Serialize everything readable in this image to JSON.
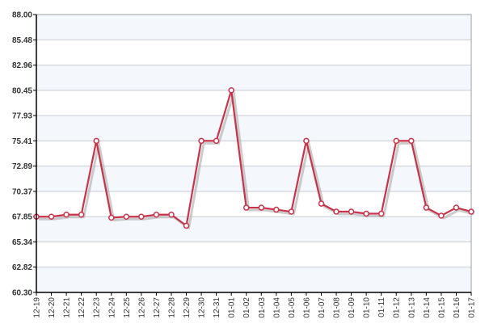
{
  "chart_data": {
    "type": "line",
    "title": "",
    "xlabel": "",
    "ylabel": "",
    "categories": [
      "12-19",
      "12-20",
      "12-21",
      "12-22",
      "12-23",
      "12-24",
      "12-25",
      "12-26",
      "12-27",
      "12-28",
      "12-29",
      "12-30",
      "12-31",
      "01-01",
      "01-02",
      "01-03",
      "01-04",
      "01-05",
      "01-06",
      "01-07",
      "01-08",
      "01-09",
      "01-10",
      "01-11",
      "01-12",
      "01-13",
      "01-14",
      "01-15",
      "01-16",
      "01-17"
    ],
    "y_ticks": [
      "60.30",
      "62.82",
      "65.34",
      "67.85",
      "70.37",
      "72.89",
      "75.41",
      "77.93",
      "80.45",
      "82.96",
      "85.48",
      "88.00"
    ],
    "ylim": [
      60.3,
      88.0
    ],
    "series": [
      {
        "values": [
          67.85,
          67.85,
          68.05,
          68.05,
          75.41,
          67.75,
          67.85,
          67.85,
          68.05,
          68.05,
          66.95,
          75.41,
          75.41,
          80.45,
          68.75,
          68.75,
          68.55,
          68.35,
          75.41,
          69.15,
          68.35,
          68.35,
          68.15,
          68.15,
          75.41,
          75.41,
          68.75,
          67.95,
          68.75,
          68.35
        ]
      }
    ],
    "grid": true,
    "legend": "none",
    "colors": {
      "line": "#c8334a",
      "shadow": "#b0b0b0",
      "band": "#f4f7fb",
      "grid": "#c8ccd4",
      "axis": "#000000"
    }
  }
}
